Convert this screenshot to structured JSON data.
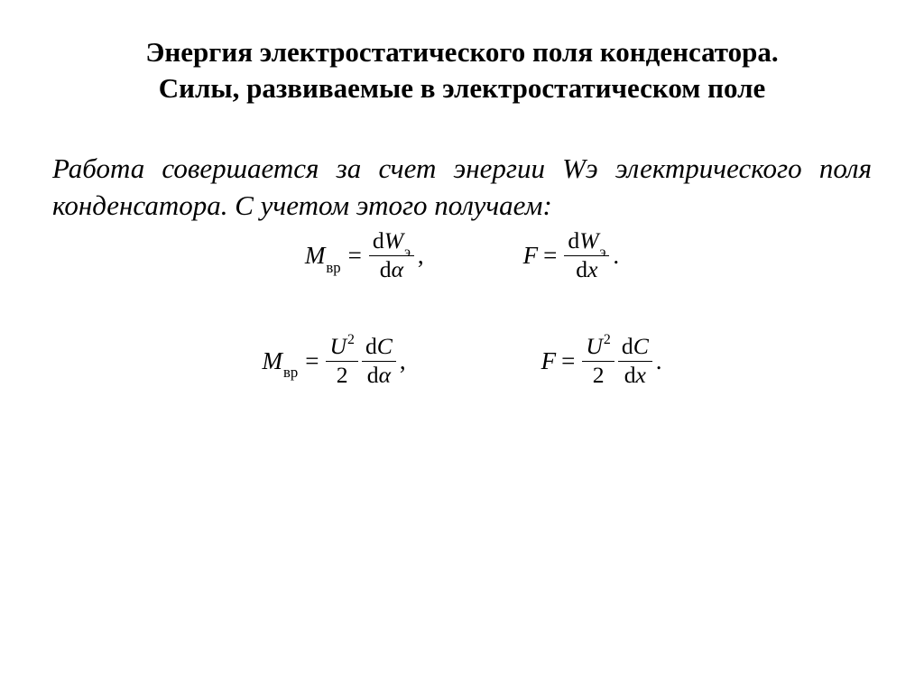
{
  "title": {
    "line1": "Энергия электростатического поля конденсатора.",
    "line2": "Силы, развиваемые в электростатическом поле"
  },
  "body": "Работа совершается за счет энергии Wэ электрического поля конденсатора. С учетом этого получаем:",
  "symbols": {
    "M": "M",
    "vr": "вр",
    "F": "F",
    "eq": "=",
    "d": "d",
    "W": "W",
    "e": "э",
    "alpha": "α",
    "x": "x",
    "U": "U",
    "sq": "2",
    "two": "2",
    "C": "C",
    "comma": ",",
    "dotcomma": ",",
    "dot": "."
  },
  "style": {
    "background": "#ffffff",
    "text_color": "#000000",
    "title_fontsize": 31,
    "body_fontsize": 31,
    "eq_fontsize": 27,
    "font_family": "Times New Roman"
  }
}
